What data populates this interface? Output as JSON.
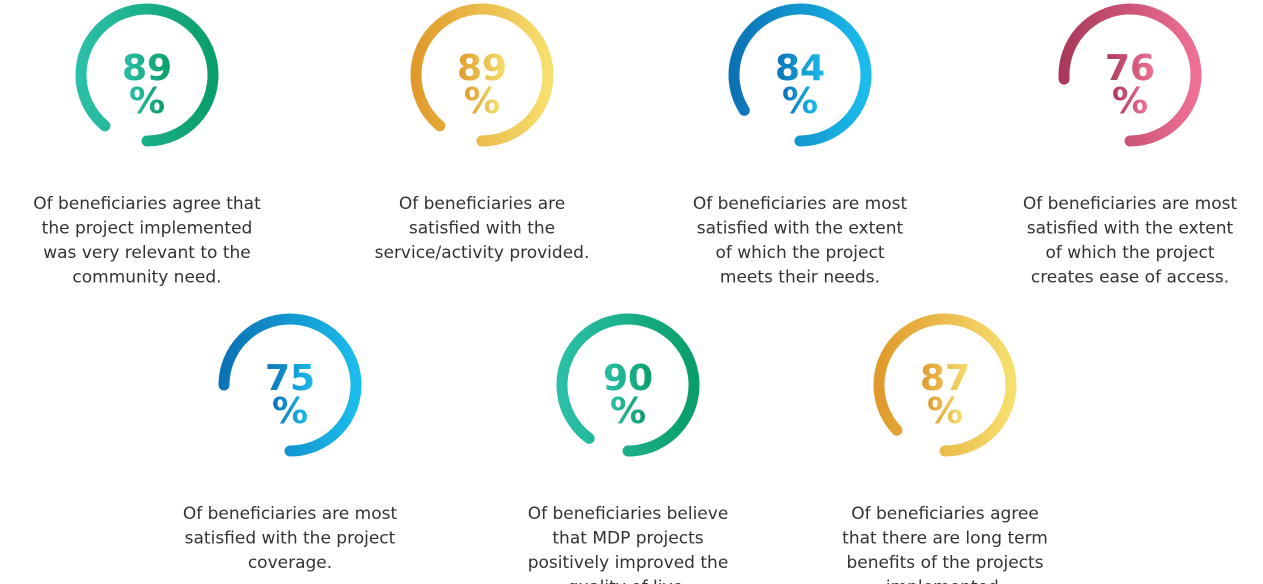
{
  "unit": "%",
  "stats": [
    {
      "value": 89,
      "colors": [
        "#2bbfa8",
        "#0a9e6a"
      ],
      "description": [
        "Of beneficiaries agree that",
        "the project implemented",
        "was very relevant to the",
        "community need."
      ]
    },
    {
      "value": 89,
      "colors": [
        "#e09a2c",
        "#f6df6e"
      ],
      "description": [
        "Of beneficiaries are",
        "satisfied with the",
        "service/activity provided."
      ]
    },
    {
      "value": 84,
      "colors": [
        "#0b72b5",
        "#1bbcec"
      ],
      "description": [
        "Of beneficiaries are most",
        "satisfied with the extent",
        "of which the project",
        "meets their needs."
      ]
    },
    {
      "value": 76,
      "colors": [
        "#a93a5c",
        "#ef7095"
      ],
      "description": [
        "Of beneficiaries are most",
        "satisfied with the extent",
        "of which the project",
        "creates ease of access."
      ]
    },
    {
      "value": 75,
      "colors": [
        "#0b72b5",
        "#1bbcec"
      ],
      "description": [
        "Of beneficiaries are most",
        "satisfied with the project",
        "coverage."
      ]
    },
    {
      "value": 90,
      "colors": [
        "#2bbfa8",
        "#0a9e6a"
      ],
      "description": [
        "Of beneficiaries believe",
        "that MDP projects",
        "positively improved the",
        "quality of live."
      ]
    },
    {
      "value": 87,
      "colors": [
        "#e09a2c",
        "#f6df6e"
      ],
      "description": [
        "Of beneficiaries agree",
        "that there are long term",
        "benefits of the projects",
        "implemented."
      ]
    }
  ]
}
